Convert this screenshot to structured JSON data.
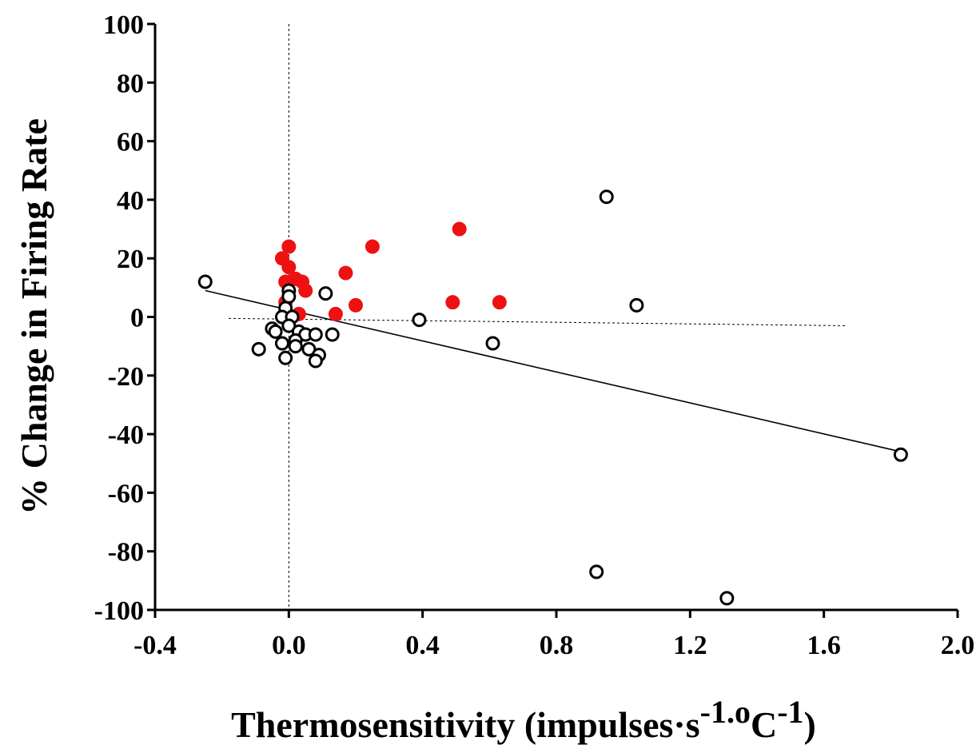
{
  "chart_data": {
    "type": "scatter",
    "title": "",
    "xlabel": {
      "main": "Thermosensitivity (impulses·s",
      "sup1": "-1.o",
      "mid": "C",
      "sup2": "-1",
      "end": ")"
    },
    "ylabel": "% Change in Firing Rate",
    "xlim": [
      -0.4,
      2.0
    ],
    "ylim": [
      -100,
      100
    ],
    "xticks": [
      -0.4,
      0.0,
      0.4,
      0.8,
      1.2,
      1.6,
      2.0
    ],
    "xtick_labels": [
      "-0.4",
      "0.0",
      "0.4",
      "0.8",
      "1.2",
      "1.6",
      "2.0"
    ],
    "yticks": [
      -100,
      -80,
      -60,
      -40,
      -20,
      0,
      20,
      40,
      60,
      80,
      100
    ],
    "ytick_labels": [
      "-100",
      "-80",
      "-60",
      "-40",
      "-20",
      "0",
      "20",
      "40",
      "60",
      "80",
      "100"
    ],
    "grid": false,
    "colors": {
      "filled": "#ee1111",
      "open": "#000000"
    },
    "series": [
      {
        "style": "filled",
        "points": [
          [
            -0.02,
            20
          ],
          [
            0.0,
            24
          ],
          [
            0.0,
            17
          ],
          [
            -0.01,
            12
          ],
          [
            0.02,
            13
          ],
          [
            0.04,
            12
          ],
          [
            0.05,
            9
          ],
          [
            -0.01,
            5
          ],
          [
            0.03,
            1
          ],
          [
            0.14,
            1
          ],
          [
            0.17,
            15
          ],
          [
            0.2,
            4
          ],
          [
            0.25,
            24
          ],
          [
            0.49,
            5
          ],
          [
            0.51,
            30
          ],
          [
            0.63,
            5
          ]
        ]
      },
      {
        "style": "open",
        "points": [
          [
            -0.25,
            12
          ],
          [
            0.0,
            9
          ],
          [
            0.0,
            7
          ],
          [
            -0.01,
            3
          ],
          [
            -0.02,
            0
          ],
          [
            0.01,
            0
          ],
          [
            0.0,
            -3
          ],
          [
            -0.05,
            -4
          ],
          [
            -0.04,
            -5
          ],
          [
            0.03,
            -5
          ],
          [
            0.05,
            -6
          ],
          [
            0.08,
            -6
          ],
          [
            0.13,
            -6
          ],
          [
            0.11,
            8
          ],
          [
            -0.02,
            -9
          ],
          [
            0.02,
            -8
          ],
          [
            0.02,
            -10
          ],
          [
            0.06,
            -11
          ],
          [
            -0.09,
            -11
          ],
          [
            0.09,
            -13
          ],
          [
            -0.01,
            -14
          ],
          [
            0.08,
            -15
          ],
          [
            0.39,
            -1
          ],
          [
            0.61,
            -9
          ],
          [
            0.95,
            41
          ],
          [
            1.04,
            4
          ],
          [
            1.83,
            -47
          ],
          [
            0.92,
            -87
          ],
          [
            1.31,
            -96
          ]
        ]
      }
    ],
    "trend_line": {
      "x": [
        -0.25,
        1.83
      ],
      "y": [
        9,
        -46
      ]
    },
    "reference_lines": {
      "vertical_x": 0.0,
      "vertical_y_range": [
        -100,
        100
      ],
      "horizontal": {
        "x": [
          -0.18,
          1.67
        ],
        "y": [
          -0.5,
          -3
        ]
      }
    }
  }
}
